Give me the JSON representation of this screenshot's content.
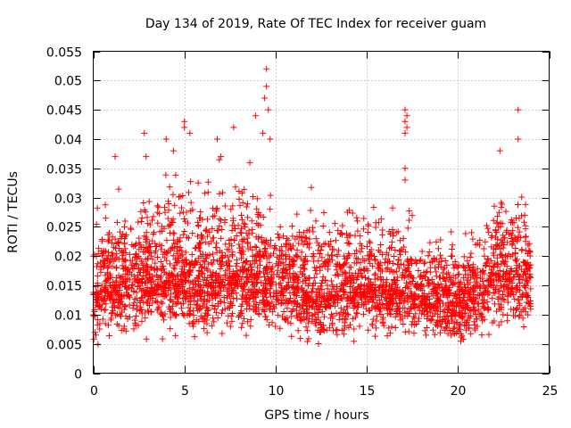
{
  "chart_data": {
    "type": "scatter",
    "title": "Day 134 of 2019, Rate Of TEC Index for receiver guam",
    "xlabel": "GPS time / hours",
    "ylabel": "ROTI / TECUs",
    "xlim": [
      0,
      25
    ],
    "ylim": [
      0,
      0.055
    ],
    "x_ticks": [
      0,
      5,
      10,
      15,
      20,
      25
    ],
    "x_tick_labels": [
      "0",
      "5",
      "10",
      "15",
      "20",
      "25"
    ],
    "y_ticks": [
      0,
      0.005,
      0.01,
      0.015,
      0.02,
      0.025,
      0.03,
      0.035,
      0.04,
      0.045,
      0.05,
      0.055
    ],
    "y_tick_labels": [
      "0",
      "0.005",
      "0.01",
      "0.015",
      "0.02",
      "0.025",
      "0.03",
      "0.035",
      "0.04",
      "0.045",
      "0.05",
      "0.055"
    ],
    "grid": true,
    "marker": "+",
    "series": [
      {
        "name": "ROTI",
        "color": "#ff0000",
        "profile": {
          "time_hours": [
            0,
            1,
            2,
            3,
            4,
            5,
            6,
            7,
            8,
            9,
            10,
            11,
            12,
            13,
            14,
            15,
            16,
            17,
            18,
            19,
            20,
            21,
            22,
            23,
            24
          ],
          "median_roti": [
            0.014,
            0.015,
            0.016,
            0.016,
            0.016,
            0.016,
            0.015,
            0.016,
            0.017,
            0.017,
            0.016,
            0.015,
            0.013,
            0.014,
            0.015,
            0.015,
            0.014,
            0.014,
            0.013,
            0.013,
            0.012,
            0.013,
            0.017,
            0.018,
            0.016
          ],
          "upper_envelope_roti": [
            0.033,
            0.031,
            0.033,
            0.034,
            0.037,
            0.038,
            0.036,
            0.037,
            0.036,
            0.036,
            0.033,
            0.029,
            0.033,
            0.029,
            0.033,
            0.03,
            0.029,
            0.029,
            0.027,
            0.026,
            0.025,
            0.028,
            0.037,
            0.037,
            0.031
          ],
          "lower_envelope_roti": [
            0.002,
            0.004,
            0.005,
            0.005,
            0.005,
            0.005,
            0.005,
            0.005,
            0.005,
            0.005,
            0.005,
            0.004,
            0.003,
            0.004,
            0.004,
            0.005,
            0.005,
            0.005,
            0.005,
            0.004,
            0.003,
            0.004,
            0.005,
            0.004,
            0.003
          ]
        },
        "notable_points": [
          {
            "x": 9.5,
            "y": 0.052
          },
          {
            "x": 9.5,
            "y": 0.049
          },
          {
            "x": 9.4,
            "y": 0.047
          },
          {
            "x": 9.6,
            "y": 0.045
          },
          {
            "x": 8.9,
            "y": 0.044
          },
          {
            "x": 17.1,
            "y": 0.045
          },
          {
            "x": 17.2,
            "y": 0.044
          },
          {
            "x": 17.1,
            "y": 0.043
          },
          {
            "x": 17.2,
            "y": 0.042
          },
          {
            "x": 17.1,
            "y": 0.041
          },
          {
            "x": 23.3,
            "y": 0.045
          },
          {
            "x": 23.3,
            "y": 0.04
          },
          {
            "x": 5.0,
            "y": 0.043
          },
          {
            "x": 5.0,
            "y": 0.042
          },
          {
            "x": 2.8,
            "y": 0.041
          },
          {
            "x": 5.3,
            "y": 0.041
          },
          {
            "x": 9.7,
            "y": 0.04
          },
          {
            "x": 9.3,
            "y": 0.041
          },
          {
            "x": 7.7,
            "y": 0.042
          },
          {
            "x": 4.0,
            "y": 0.04
          },
          {
            "x": 4.4,
            "y": 0.038
          },
          {
            "x": 6.8,
            "y": 0.04
          },
          {
            "x": 22.3,
            "y": 0.038
          },
          {
            "x": 17.1,
            "y": 0.035
          },
          {
            "x": 17.1,
            "y": 0.033
          },
          {
            "x": 1.2,
            "y": 0.037
          },
          {
            "x": 2.9,
            "y": 0.037
          },
          {
            "x": 7.0,
            "y": 0.037
          }
        ]
      }
    ]
  }
}
